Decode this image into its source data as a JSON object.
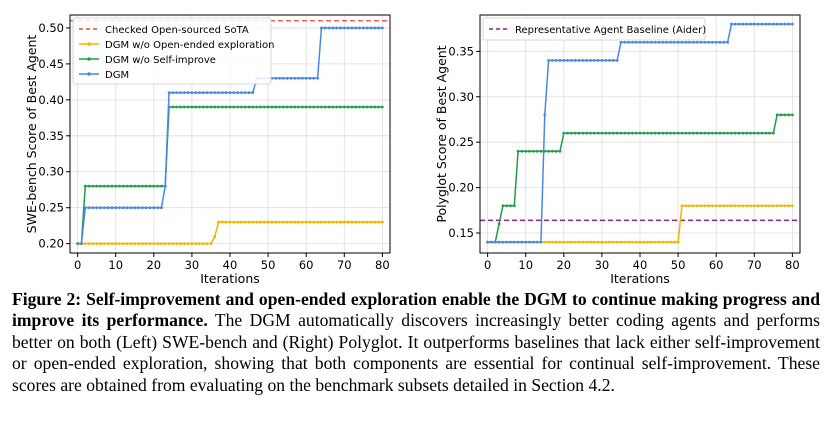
{
  "caption": {
    "label": "Figure 2:",
    "bold": "Self-improvement and open-ended exploration enable the DGM to continue making progress and improve its performance.",
    "text": "The DGM automatically discovers increasingly better coding agents and performs better on both (Left) SWE-bench and (Right) Polyglot. It outperforms baselines that lack either self-improvement or open-ended exploration, showing that both components are essential for continual self-improvement. These scores are obtained from evaluating on the benchmark subsets detailed in Section 4.2."
  },
  "colors": {
    "dgm": "#4a86e8",
    "no_open": "#f4b400",
    "no_self": "#1e9e4a",
    "sota": "#e8453c",
    "baseline": "#8e1a8e"
  },
  "chart_data": [
    {
      "type": "line",
      "title": "",
      "xlabel": "Iterations",
      "ylabel": "SWE-bench Score of Best Agent",
      "xlim": [
        -2,
        82
      ],
      "ylim": [
        0.187,
        0.518
      ],
      "xticks": [
        0,
        10,
        20,
        30,
        40,
        50,
        60,
        70,
        80
      ],
      "yticks": [
        0.2,
        0.25,
        0.3,
        0.35,
        0.4,
        0.45,
        0.5
      ],
      "xtick_labels": [
        "0",
        "10",
        "20",
        "30",
        "40",
        "50",
        "60",
        "70",
        "80"
      ],
      "ytick_labels": [
        "0.20",
        "0.25",
        "0.30",
        "0.35",
        "0.40",
        "0.45",
        "0.50"
      ],
      "grid": true,
      "legend_position": "top-left",
      "reference_lines": [
        {
          "name": "Checked Open-sourced SoTA",
          "y": 0.51,
          "color_key": "sota"
        }
      ],
      "series": [
        {
          "name": "DGM w/o Open-ended exploration",
          "color_key": "no_open",
          "steps": [
            [
              0,
              0.2
            ],
            [
              36,
              0.21
            ],
            [
              37,
              0.23
            ],
            [
              80,
              0.23
            ]
          ]
        },
        {
          "name": "DGM w/o Self-improve",
          "color_key": "no_self",
          "steps": [
            [
              0,
              0.2
            ],
            [
              2,
              0.28
            ],
            [
              24,
              0.39
            ],
            [
              80,
              0.39
            ]
          ]
        },
        {
          "name": "DGM",
          "color_key": "dgm",
          "steps": [
            [
              0,
              0.2
            ],
            [
              2,
              0.25
            ],
            [
              23,
              0.28
            ],
            [
              24,
              0.41
            ],
            [
              47,
              0.43
            ],
            [
              64,
              0.5
            ],
            [
              80,
              0.5
            ]
          ]
        }
      ]
    },
    {
      "type": "line",
      "title": "",
      "xlabel": "Iterations",
      "ylabel": "Polyglot Score of Best Agent",
      "xlim": [
        -2,
        82
      ],
      "ylim": [
        0.128,
        0.39
      ],
      "xticks": [
        0,
        10,
        20,
        30,
        40,
        50,
        60,
        70,
        80
      ],
      "yticks": [
        0.15,
        0.2,
        0.25,
        0.3,
        0.35
      ],
      "xtick_labels": [
        "0",
        "10",
        "20",
        "30",
        "40",
        "50",
        "60",
        "70",
        "80"
      ],
      "ytick_labels": [
        "0.15",
        "0.20",
        "0.25",
        "0.30",
        "0.35"
      ],
      "grid": true,
      "legend_position": "top-left",
      "reference_lines": [
        {
          "name": "Representative Agent Baseline (Aider)",
          "y": 0.164,
          "color_key": "baseline"
        }
      ],
      "series": [
        {
          "name": "DGM w/o Open-ended exploration",
          "color_key": "no_open",
          "steps": [
            [
              0,
              0.14
            ],
            [
              51,
              0.18
            ],
            [
              80,
              0.18
            ]
          ]
        },
        {
          "name": "DGM w/o Self-improve",
          "color_key": "no_self",
          "steps": [
            [
              0,
              0.14
            ],
            [
              3,
              0.16
            ],
            [
              4,
              0.18
            ],
            [
              8,
              0.24
            ],
            [
              20,
              0.26
            ],
            [
              76,
              0.28
            ],
            [
              80,
              0.28
            ]
          ]
        },
        {
          "name": "DGM",
          "color_key": "dgm",
          "steps": [
            [
              0,
              0.14
            ],
            [
              15,
              0.28
            ],
            [
              16,
              0.34
            ],
            [
              35,
              0.36
            ],
            [
              64,
              0.38
            ],
            [
              80,
              0.38
            ]
          ]
        }
      ]
    }
  ]
}
